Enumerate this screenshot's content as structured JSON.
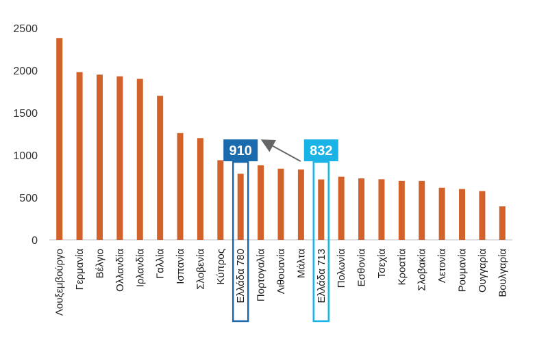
{
  "chart_data": {
    "type": "bar",
    "title": "",
    "xlabel": "",
    "ylabel": "",
    "ylim": [
      0,
      2500
    ],
    "yticks": [
      0,
      500,
      1000,
      1500,
      2000,
      2500
    ],
    "grid": false,
    "bar_color": "#d2622a",
    "categories": [
      "Λουξεμβούργο",
      "Γερμανία",
      "Βέλγιο",
      "Ολλανδία",
      "Ιρλανδία",
      "Γαλλία",
      "Ισπανία",
      "Σλοβενία",
      "Κύπρος",
      "Ελλάδα 780",
      "Πορτογαλία",
      "Λιθουανία",
      "Μάλτα",
      "Ελλάδα 713",
      "Πολωνία",
      "Εσθονία",
      "Τσεχία",
      "Κροατία",
      "Σλοβακία",
      "Λετονία",
      "Ρουμανία",
      "Ουγγαρία",
      "Βουλγαρία"
    ],
    "values": [
      2380,
      1980,
      1950,
      1930,
      1900,
      1700,
      1260,
      1200,
      940,
      780,
      880,
      840,
      830,
      713,
      745,
      725,
      715,
      695,
      695,
      615,
      600,
      575,
      395
    ],
    "annotations": [
      {
        "category": "Ελλάδα 780",
        "label": "910",
        "color": "#1a6aae"
      },
      {
        "category": "Ελλάδα 713",
        "label": "832",
        "color": "#19b3e6"
      }
    ],
    "arrow": {
      "from": "Ελλάδα 713",
      "to": "Ελλάδα 780",
      "color": "#666666"
    }
  }
}
